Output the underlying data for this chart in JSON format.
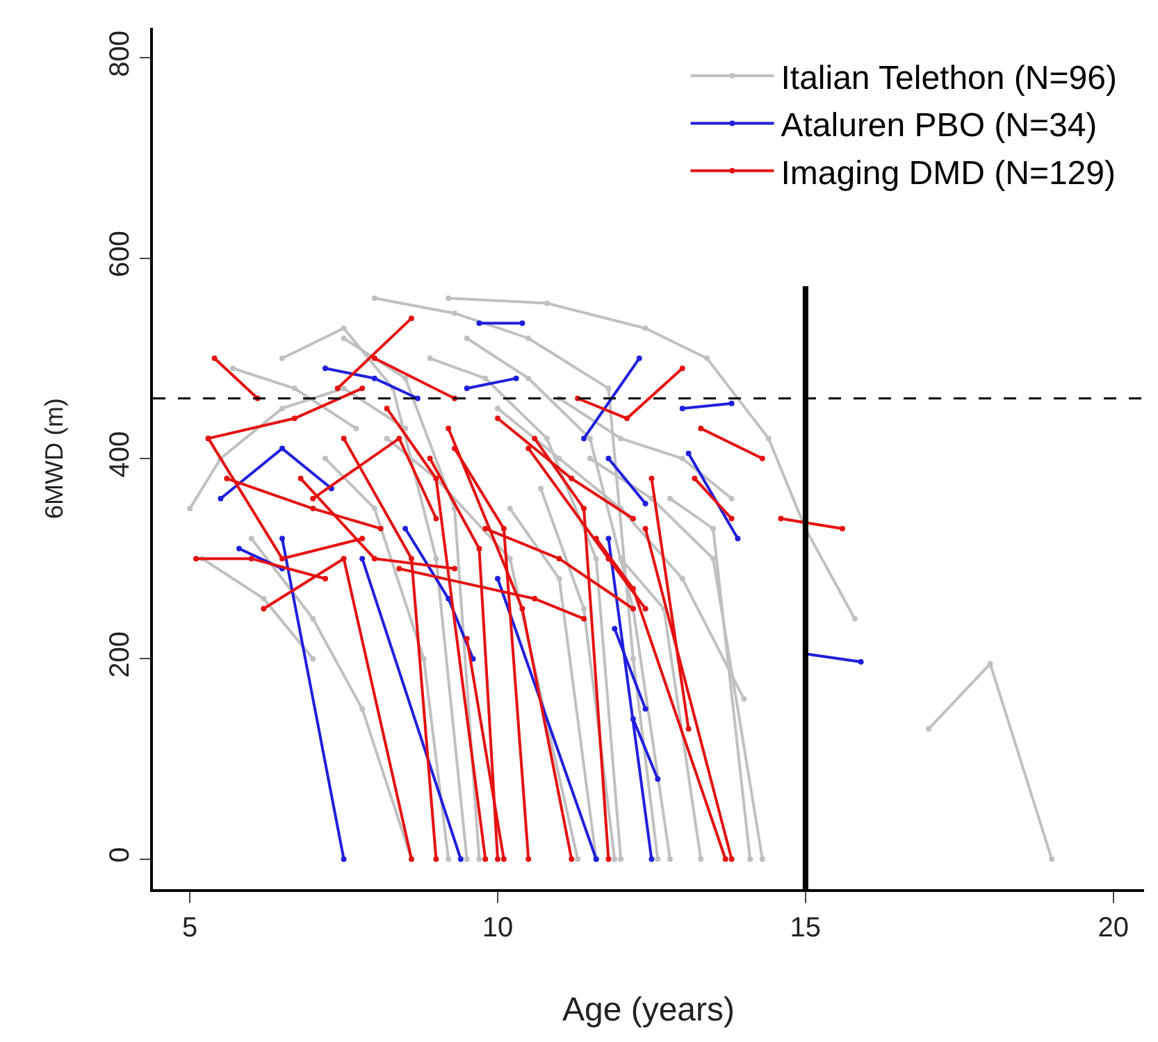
{
  "chart_data": {
    "type": "line",
    "xlabel": "Age (years)",
    "ylabel": "6MWD (m)",
    "xlim": [
      4.4,
      20.5
    ],
    "xticks": [
      5,
      10,
      15,
      20
    ],
    "ylim": [
      -30,
      830
    ],
    "yticks": [
      0,
      200,
      400,
      600,
      800
    ],
    "grid": false,
    "legend": "top right",
    "marker": "circle",
    "line_style": "solid",
    "ref_lines": [
      {
        "axis": "y",
        "value": 460,
        "line_style": "dashed",
        "color": "#000000"
      },
      {
        "axis": "x",
        "value": 15,
        "line_style": "solid",
        "color": "#000000"
      }
    ],
    "series": [
      {
        "name": "Italian Telethon (N=96)",
        "color": "#c0c0c0",
        "x": [
          17,
          18,
          19,
          null,
          9.2,
          10.8,
          12.4,
          13.4,
          14.4,
          15,
          15.8,
          null,
          8.0,
          9.3,
          10.5,
          11.8,
          12.2,
          12.6,
          null,
          5.0,
          5.5,
          6.5,
          7.5,
          8.5,
          null,
          6,
          7,
          7.8,
          8.6,
          null,
          8.9,
          9.8,
          10.8,
          11.6,
          12.0,
          null,
          9.5,
          10.5,
          11.5,
          12.2,
          12.8,
          null,
          7.5,
          8.5,
          9.3,
          9.7,
          null,
          10,
          11,
          12,
          13,
          14.0,
          null,
          11.5,
          12.5,
          13.5,
          14.3,
          null,
          6.5,
          7.5,
          8.3,
          9.0,
          9.5,
          null,
          10.7,
          11.4,
          11.9,
          null,
          12.8,
          13.5,
          14.1,
          null,
          5.2,
          6.2,
          7.0,
          null,
          11,
          12,
          13,
          13.8,
          null,
          8.2,
          9,
          10.2,
          11.3,
          null,
          7.2,
          8,
          8.8,
          9.2,
          null,
          10.2,
          11.0,
          11.6,
          null,
          12,
          12.7,
          13.3,
          null,
          5.7,
          6.7,
          7.7
        ],
        "values": [
          130,
          195,
          0,
          null,
          560,
          555,
          530,
          500,
          420,
          330,
          240,
          null,
          560,
          545,
          520,
          470,
          200,
          0,
          null,
          350,
          400,
          450,
          470,
          430,
          null,
          320,
          240,
          150,
          0,
          null,
          500,
          480,
          420,
          300,
          0,
          null,
          520,
          480,
          420,
          250,
          0,
          null,
          520,
          480,
          350,
          0,
          null,
          450,
          400,
          350,
          280,
          160,
          null,
          400,
          360,
          300,
          0,
          null,
          500,
          530,
          470,
          300,
          0,
          null,
          370,
          250,
          0,
          null,
          360,
          330,
          0,
          null,
          300,
          260,
          200,
          null,
          460,
          420,
          400,
          360,
          null,
          420,
          380,
          300,
          0,
          null,
          400,
          350,
          200,
          0,
          null,
          350,
          280,
          0,
          null,
          300,
          250,
          0,
          null,
          490,
          470,
          430
        ]
      },
      {
        "name": "Ataluren PBO (N=34)",
        "color": "#1f1fdd",
        "x": [
          6.5,
          7.5,
          null,
          7.8,
          9.4,
          null,
          9.7,
          10.4,
          null,
          11.4,
          12.3,
          null,
          13.0,
          13.8,
          null,
          13.1,
          13.9,
          null,
          11.8,
          12.4,
          null,
          15,
          15.9,
          null,
          11.9,
          12.4,
          null,
          12.2,
          12.6,
          null,
          10.0,
          11.6,
          null,
          11.8,
          12.5,
          null,
          5.5,
          6.5,
          7.3,
          null,
          7.2,
          8.0,
          8.7,
          null,
          9.5,
          10.3,
          null,
          5.8,
          6.5,
          null,
          8.5,
          9.2,
          9.6
        ],
        "values": [
          320,
          0,
          null,
          300,
          0,
          null,
          535,
          535,
          null,
          420,
          500,
          null,
          450,
          455,
          null,
          405,
          320,
          null,
          400,
          355,
          null,
          205,
          197,
          null,
          230,
          150,
          null,
          140,
          80,
          null,
          280,
          0,
          null,
          320,
          0,
          null,
          360,
          410,
          370,
          null,
          490,
          480,
          460,
          null,
          470,
          480,
          null,
          310,
          290,
          null,
          330,
          260,
          200
        ]
      },
      {
        "name": "Imaging DMD (N=129)",
        "color": "#e51010",
        "x": [
          5.4,
          6.1,
          null,
          5.3,
          6.7,
          7.8,
          null,
          5.1,
          6.0,
          7.2,
          null,
          5.6,
          7.0,
          8.1,
          null,
          6.2,
          7.5,
          8.6,
          null,
          7.4,
          8.6,
          null,
          8.0,
          9.3,
          null,
          7.5,
          8.6,
          9.0,
          null,
          8.2,
          9.0,
          9.8,
          null,
          8.9,
          9.7,
          10.0,
          null,
          9.3,
          10.1,
          10.5,
          null,
          9.2,
          10.4,
          11.2,
          null,
          9.5,
          10.1,
          null,
          10,
          11.2,
          12.2,
          null,
          10.5,
          11.8,
          12.4,
          null,
          11.3,
          12.1,
          13.0,
          null,
          12.5,
          13.1,
          null,
          12.4,
          13.8,
          null,
          11.6,
          12.2,
          13.7,
          null,
          13.3,
          14.3,
          null,
          13.2,
          13.8,
          null,
          14.6,
          15.6,
          null,
          5.3,
          6.5,
          7.8,
          null,
          6.8,
          8.0,
          9.3,
          null,
          7.0,
          8.4,
          9.0,
          null,
          8.4,
          10.6,
          11.4,
          null,
          9.8,
          11.0,
          12.2,
          null,
          10.6,
          11.4,
          11.8
        ],
        "values": [
          500,
          460,
          null,
          420,
          440,
          470,
          null,
          300,
          300,
          280,
          null,
          380,
          350,
          330,
          null,
          250,
          300,
          0,
          null,
          470,
          540,
          null,
          500,
          460,
          null,
          420,
          300,
          0,
          null,
          450,
          380,
          0,
          null,
          400,
          310,
          0,
          null,
          410,
          330,
          0,
          null,
          430,
          250,
          0,
          null,
          220,
          0,
          null,
          440,
          380,
          340,
          null,
          410,
          300,
          250,
          null,
          460,
          440,
          490,
          null,
          380,
          130,
          null,
          330,
          0,
          null,
          320,
          270,
          0,
          null,
          430,
          400,
          null,
          380,
          340,
          null,
          340,
          330,
          null,
          420,
          300,
          320,
          null,
          380,
          300,
          290,
          null,
          360,
          420,
          340,
          null,
          290,
          260,
          240,
          null,
          330,
          300,
          250,
          null,
          420,
          350,
          0
        ]
      }
    ]
  }
}
